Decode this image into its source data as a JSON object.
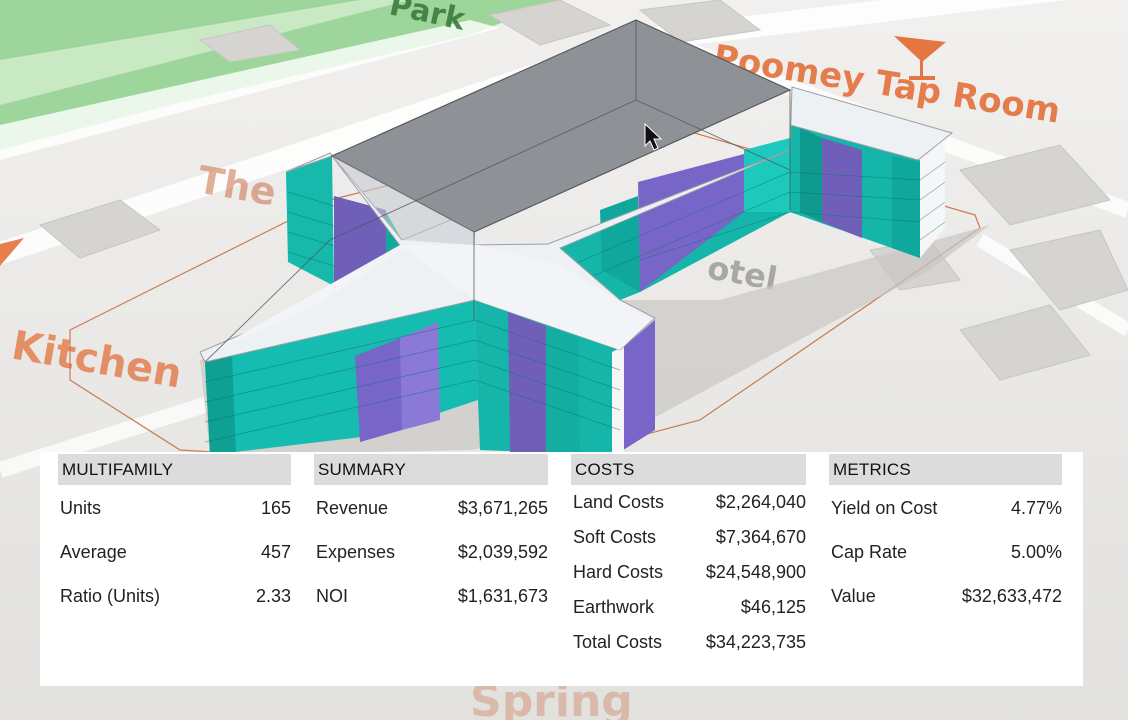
{
  "map": {
    "labels": {
      "park": "Park",
      "tap_room": "Poomey Tap Room",
      "the": "The",
      "hotel": "otel",
      "kitchen": "Kitchen",
      "spring": "Spring"
    },
    "colors": {
      "ground": "#e6e5e2",
      "park_green": "#9ed59a",
      "label_orange": "#e3692f",
      "roof_white": "#eef1f4",
      "roof_gray": "#8e9297",
      "facade_teal": "#16bfb3",
      "facade_purple": "#7c6cc9"
    }
  },
  "panel": {
    "multifamily": {
      "title": "MULTIFAMILY",
      "rows": [
        {
          "label": "Units",
          "value": "165"
        },
        {
          "label": "Average",
          "value": "457"
        },
        {
          "label": "Ratio (Units)",
          "value": "2.33"
        }
      ]
    },
    "summary": {
      "title": "SUMMARY",
      "rows": [
        {
          "label": "Revenue",
          "value": "$3,671,265"
        },
        {
          "label": "Expenses",
          "value": "$2,039,592"
        },
        {
          "label": "NOI",
          "value": "$1,631,673"
        }
      ]
    },
    "costs": {
      "title": "COSTS",
      "rows": [
        {
          "label": "Land Costs",
          "value": "$2,264,040"
        },
        {
          "label": "Soft Costs",
          "value": "$7,364,670"
        },
        {
          "label": "Hard Costs",
          "value": "$24,548,900"
        },
        {
          "label": "Earthwork",
          "value": "$46,125"
        },
        {
          "label": "Total Costs",
          "value": "$34,223,735"
        }
      ]
    },
    "metrics": {
      "title": "METRICS",
      "rows": [
        {
          "label": "Yield on Cost",
          "value": "4.77%"
        },
        {
          "label": "Cap Rate",
          "value": "5.00%"
        },
        {
          "label": "Value",
          "value": "$32,633,472"
        }
      ]
    }
  }
}
